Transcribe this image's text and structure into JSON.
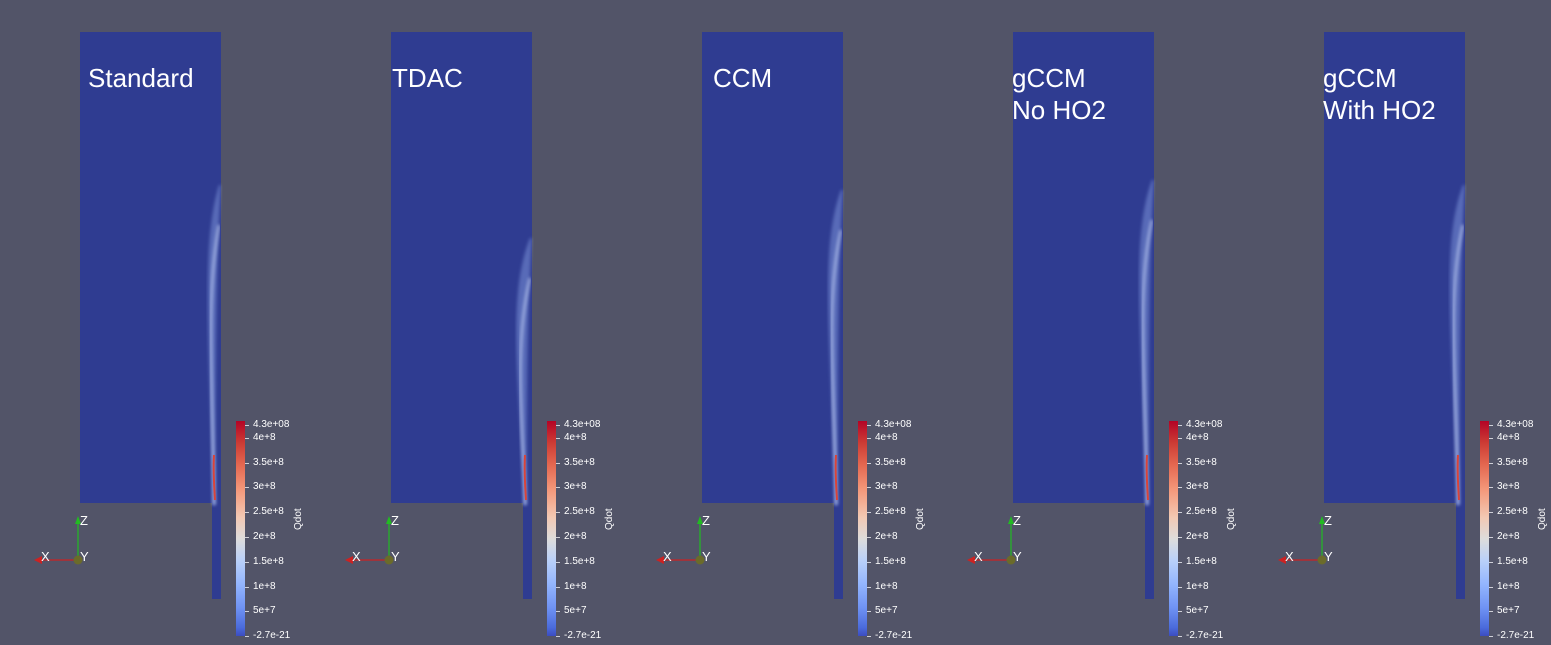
{
  "panels": [
    {
      "label": "Standard"
    },
    {
      "label": "TDAC"
    },
    {
      "label": "CCM"
    },
    {
      "label": "gCCM\nNo HO2"
    },
    {
      "label": "gCCM\nWith HO2"
    }
  ],
  "colorbar": {
    "title": "Qdot",
    "colormap": "cool-to-warm",
    "ticks": [
      "4.3e+08",
      "4e+8",
      "3.5e+8",
      "3e+8",
      "2.5e+8",
      "2e+8",
      "1.5e+8",
      "1e+8",
      "5e+7",
      "-2.7e-21"
    ]
  },
  "axes": {
    "x": "X",
    "y": "Y",
    "z": "Z"
  },
  "colors": {
    "background": "#525468",
    "domain": "#2f3c91",
    "axis_x": "#cc2222",
    "axis_z": "#22bb22",
    "axis_y": "#6b6b2a"
  }
}
